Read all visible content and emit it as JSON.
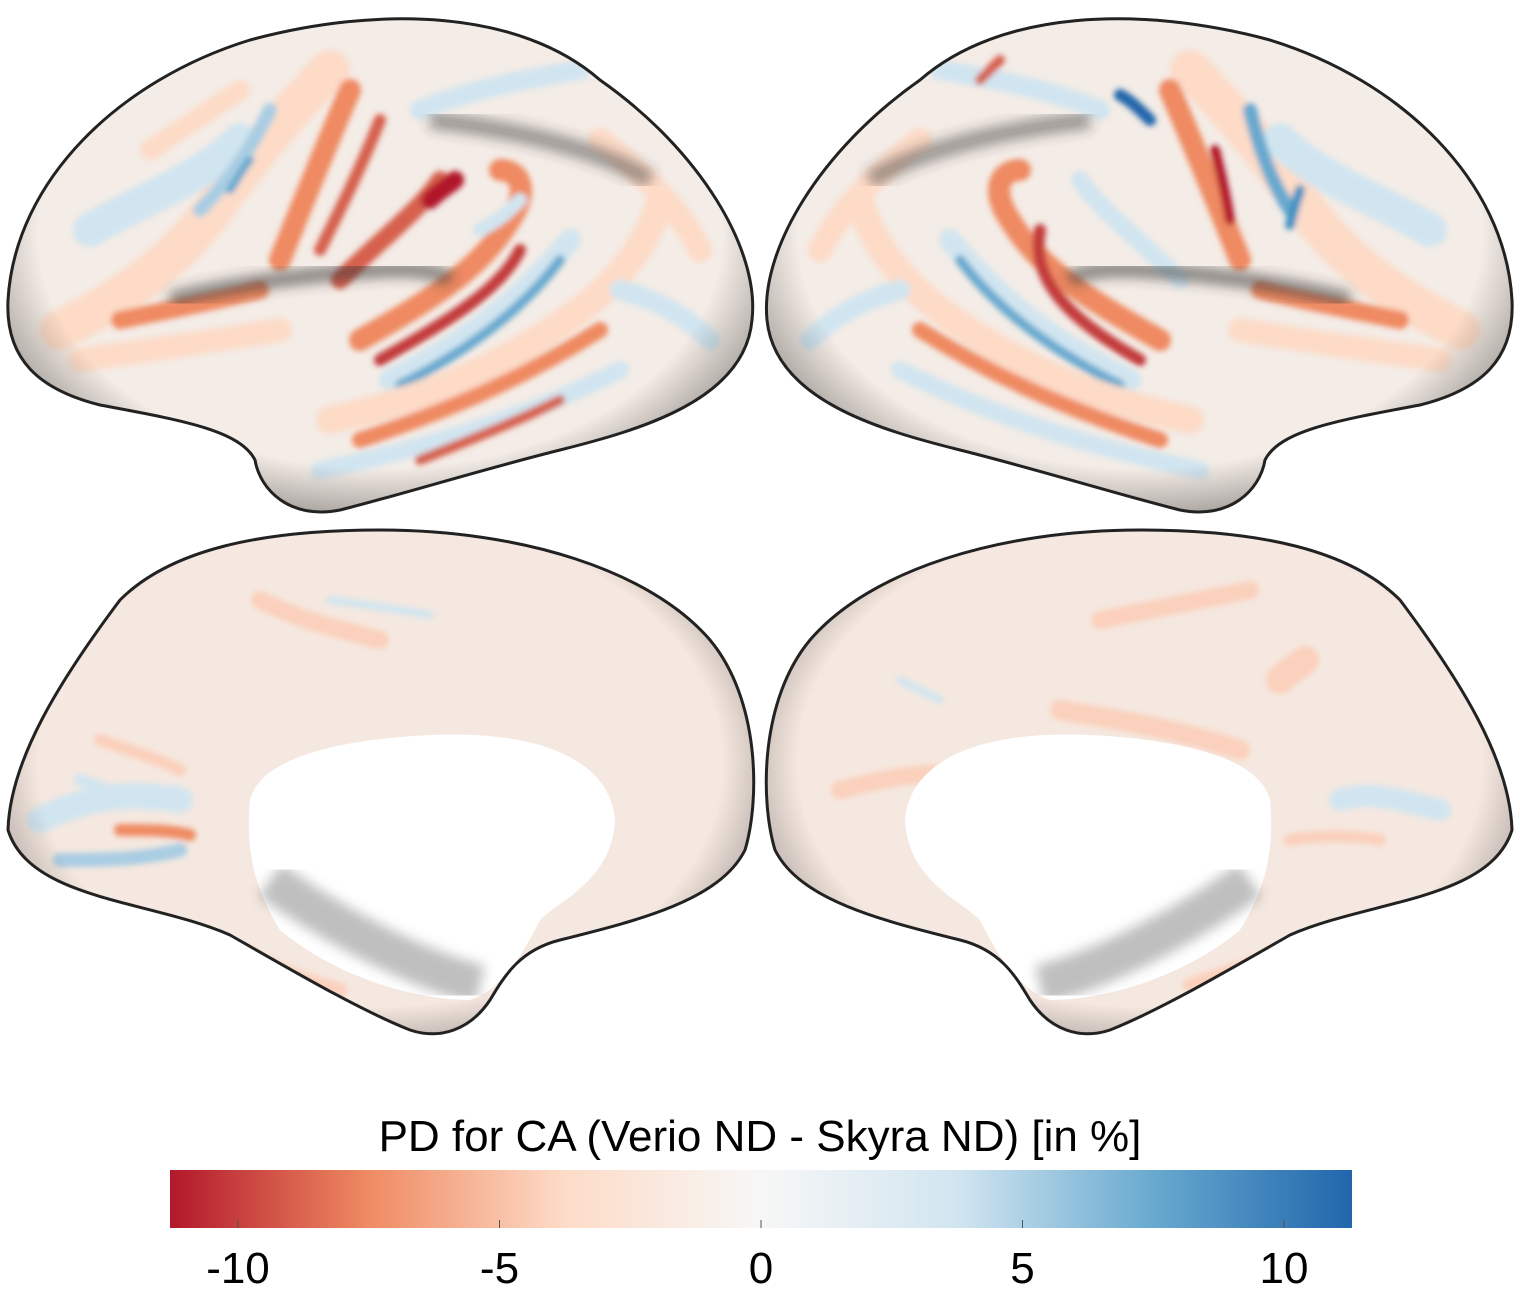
{
  "figure": {
    "views": [
      {
        "hemisphere": "left",
        "view": "lateral"
      },
      {
        "hemisphere": "right",
        "view": "lateral"
      },
      {
        "hemisphere": "left",
        "view": "medial"
      },
      {
        "hemisphere": "right",
        "view": "medial"
      }
    ]
  },
  "colorbar": {
    "title": "PD for CA (Verio ND - Skyra ND) [in %]",
    "min": -11.3,
    "max": 11.3,
    "ticks": [
      {
        "value": -10,
        "label": "-10"
      },
      {
        "value": -5,
        "label": "-5"
      },
      {
        "value": 0,
        "label": "0"
      },
      {
        "value": 5,
        "label": "5"
      },
      {
        "value": 10,
        "label": "10"
      }
    ],
    "colors": {
      "negative_end": "#b2182b",
      "neg_mid": "#ef8a62",
      "neg_light": "#fddbc7",
      "center": "#f7f7f7",
      "pos_light": "#d1e5f0",
      "pos_mid": "#67a9cf",
      "positive_end": "#2166ac"
    }
  }
}
